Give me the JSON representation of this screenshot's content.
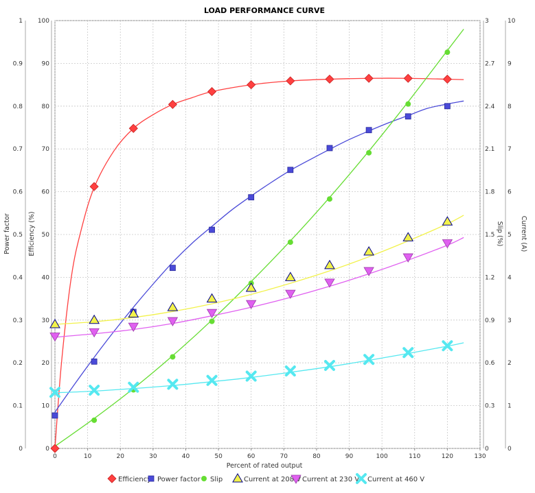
{
  "chart_data": {
    "type": "line",
    "title": "LOAD PERFORMANCE CURVE",
    "xlabel": "Percent of rated output",
    "xlim": [
      0,
      130
    ],
    "x_ticks": [
      0,
      10,
      20,
      30,
      40,
      50,
      60,
      70,
      80,
      90,
      100,
      110,
      120,
      130
    ],
    "grid": true,
    "legend_position": "bottom",
    "axes": {
      "power_factor": {
        "label": "Power factor",
        "range": [
          0,
          1
        ],
        "ticks": [
          "0",
          "0.1",
          "0.2",
          "0.3",
          "0.4",
          "0.5",
          "0.6",
          "0.7",
          "0.8",
          "0.9",
          "1"
        ]
      },
      "efficiency": {
        "label": "Efficiency (%)",
        "range": [
          0,
          100
        ],
        "ticks": [
          "0",
          "10",
          "20",
          "30",
          "40",
          "50",
          "60",
          "70",
          "80",
          "90",
          "100"
        ]
      },
      "slip": {
        "label": "Slip (%)",
        "range": [
          0,
          3
        ],
        "ticks": [
          "0",
          "0.3",
          "0.6",
          "0.9",
          "1.2",
          "1.5",
          "1.8",
          "2.1",
          "2.4",
          "2.7",
          "3"
        ]
      },
      "current": {
        "label": "Current (A)",
        "range": [
          0,
          10
        ],
        "ticks": [
          "0",
          "1",
          "2",
          "3",
          "4",
          "5",
          "6",
          "7",
          "8",
          "9",
          "10"
        ]
      }
    },
    "series": [
      {
        "name": "Efficiency",
        "axis": "efficiency",
        "color": "#ff4040",
        "marker": "diamond",
        "points": [
          [
            0,
            0
          ],
          [
            12,
            61.2
          ],
          [
            24,
            74.8
          ],
          [
            36,
            80.4
          ],
          [
            48,
            83.4
          ],
          [
            60,
            85.0
          ],
          [
            72,
            85.9
          ],
          [
            84,
            86.3
          ],
          [
            96,
            86.5
          ],
          [
            108,
            86.5
          ],
          [
            120,
            86.3
          ]
        ],
        "curve": [
          [
            0,
            0
          ],
          [
            2,
            20
          ],
          [
            5,
            40
          ],
          [
            8,
            51
          ],
          [
            12,
            61
          ],
          [
            18,
            69.5
          ],
          [
            24,
            74.8
          ],
          [
            30,
            78
          ],
          [
            36,
            80.4
          ],
          [
            42,
            82
          ],
          [
            48,
            83.4
          ],
          [
            60,
            85
          ],
          [
            72,
            85.9
          ],
          [
            84,
            86.3
          ],
          [
            96,
            86.5
          ],
          [
            108,
            86.5
          ],
          [
            120,
            86.3
          ],
          [
            125,
            86.2
          ]
        ]
      },
      {
        "name": "Power factor",
        "axis": "power_factor",
        "color": "#4a4ad8",
        "marker": "square",
        "points": [
          [
            0,
            0.077
          ],
          [
            12,
            0.203
          ],
          [
            24,
            0.319
          ],
          [
            36,
            0.422
          ],
          [
            48,
            0.511
          ],
          [
            60,
            0.587
          ],
          [
            72,
            0.651
          ],
          [
            84,
            0.702
          ],
          [
            96,
            0.744
          ],
          [
            108,
            0.776
          ],
          [
            120,
            0.8
          ]
        ],
        "curve": [
          [
            0,
            0.085
          ],
          [
            6,
            0.15
          ],
          [
            12,
            0.213
          ],
          [
            18,
            0.273
          ],
          [
            24,
            0.33
          ],
          [
            30,
            0.384
          ],
          [
            36,
            0.435
          ],
          [
            42,
            0.48
          ],
          [
            48,
            0.519
          ],
          [
            54,
            0.557
          ],
          [
            60,
            0.59
          ],
          [
            66,
            0.621
          ],
          [
            72,
            0.65
          ],
          [
            78,
            0.675
          ],
          [
            84,
            0.699
          ],
          [
            90,
            0.722
          ],
          [
            96,
            0.742
          ],
          [
            102,
            0.761
          ],
          [
            108,
            0.778
          ],
          [
            114,
            0.795
          ],
          [
            120,
            0.805
          ],
          [
            125,
            0.812
          ]
        ]
      },
      {
        "name": "Slip",
        "axis": "slip",
        "color": "#66dd33",
        "marker": "circle",
        "points": [
          [
            12,
            0.198
          ],
          [
            24,
            0.411
          ],
          [
            36,
            0.642
          ],
          [
            48,
            0.891
          ],
          [
            60,
            1.158
          ],
          [
            72,
            1.446
          ],
          [
            84,
            1.749
          ],
          [
            96,
            2.073
          ],
          [
            108,
            2.415
          ],
          [
            120,
            2.778
          ]
        ],
        "curve": [
          [
            0,
            0.015
          ],
          [
            12,
            0.21
          ],
          [
            24,
            0.42
          ],
          [
            36,
            0.65
          ],
          [
            48,
            0.9
          ],
          [
            60,
            1.17
          ],
          [
            72,
            1.455
          ],
          [
            84,
            1.76
          ],
          [
            96,
            2.085
          ],
          [
            108,
            2.43
          ],
          [
            120,
            2.79
          ],
          [
            125,
            2.94
          ]
        ]
      },
      {
        "name": "Current at 208 V",
        "axis": "current",
        "color": "#f2f24a",
        "stroke": "#00008b",
        "marker": "triangle-up",
        "points": [
          [
            0,
            2.9
          ],
          [
            12,
            3.0
          ],
          [
            24,
            3.15
          ],
          [
            36,
            3.3
          ],
          [
            48,
            3.5
          ],
          [
            60,
            3.75
          ],
          [
            72,
            4.0
          ],
          [
            84,
            4.28
          ],
          [
            96,
            4.6
          ],
          [
            108,
            4.93
          ],
          [
            120,
            5.3
          ]
        ],
        "curve": [
          [
            0,
            2.9
          ],
          [
            12,
            2.96
          ],
          [
            24,
            3.06
          ],
          [
            36,
            3.2
          ],
          [
            48,
            3.38
          ],
          [
            60,
            3.6
          ],
          [
            72,
            3.86
          ],
          [
            84,
            4.15
          ],
          [
            96,
            4.48
          ],
          [
            108,
            4.85
          ],
          [
            120,
            5.25
          ],
          [
            125,
            5.45
          ]
        ]
      },
      {
        "name": "Current at 230 V",
        "axis": "current",
        "color": "#e060f0",
        "marker": "triangle-down",
        "points": [
          [
            0,
            2.62
          ],
          [
            12,
            2.72
          ],
          [
            24,
            2.85
          ],
          [
            36,
            2.98
          ],
          [
            48,
            3.17
          ],
          [
            60,
            3.38
          ],
          [
            72,
            3.62
          ],
          [
            84,
            3.88
          ],
          [
            96,
            4.15
          ],
          [
            108,
            4.47
          ],
          [
            120,
            4.8
          ]
        ],
        "curve": [
          [
            0,
            2.6
          ],
          [
            12,
            2.68
          ],
          [
            24,
            2.78
          ],
          [
            36,
            2.92
          ],
          [
            48,
            3.1
          ],
          [
            60,
            3.3
          ],
          [
            72,
            3.53
          ],
          [
            84,
            3.79
          ],
          [
            96,
            4.08
          ],
          [
            108,
            4.4
          ],
          [
            120,
            4.75
          ],
          [
            125,
            4.93
          ]
        ]
      },
      {
        "name": "Current at 460 V",
        "axis": "current",
        "color": "#55e8f0",
        "marker": "x",
        "points": [
          [
            0,
            1.31
          ],
          [
            12,
            1.36
          ],
          [
            24,
            1.43
          ],
          [
            36,
            1.5
          ],
          [
            48,
            1.59
          ],
          [
            60,
            1.69
          ],
          [
            72,
            1.81
          ],
          [
            84,
            1.94
          ],
          [
            96,
            2.08
          ],
          [
            108,
            2.24
          ],
          [
            120,
            2.4
          ]
        ],
        "curve": [
          [
            0,
            1.3
          ],
          [
            12,
            1.34
          ],
          [
            24,
            1.4
          ],
          [
            36,
            1.47
          ],
          [
            48,
            1.56
          ],
          [
            60,
            1.66
          ],
          [
            72,
            1.78
          ],
          [
            84,
            1.91
          ],
          [
            96,
            2.06
          ],
          [
            108,
            2.22
          ],
          [
            120,
            2.39
          ],
          [
            125,
            2.47
          ]
        ]
      }
    ]
  }
}
